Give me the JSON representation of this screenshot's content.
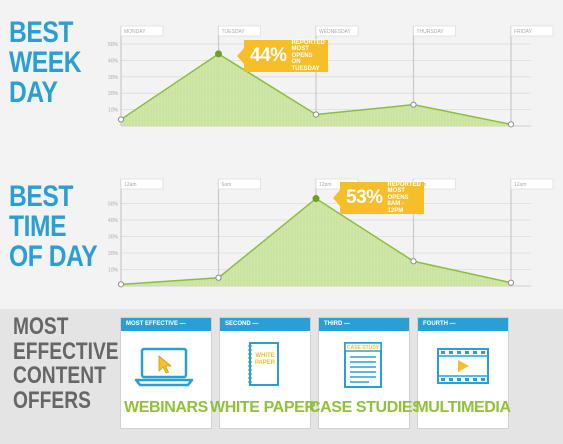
{
  "left_titles": {
    "week": [
      "BEST",
      "WEEK",
      "DAY"
    ],
    "time": [
      "BEST",
      "TIME",
      "OF DAY"
    ]
  },
  "colors": {
    "blue": "#2a9fd6",
    "green_fill": "#cfe6a4",
    "green_line": "#8cbe3c",
    "callout": "#f6bf2a",
    "gray_text": "#666666"
  },
  "chart_data": [
    {
      "type": "area",
      "categories": [
        "MONDAY",
        "TUESDAY",
        "WEDNESDAY",
        "THURSDAY",
        "FRIDAY"
      ],
      "values": [
        4,
        44,
        7,
        13,
        1
      ],
      "ylim": [
        0,
        50
      ],
      "yticks": [
        "10%",
        "20%",
        "30%",
        "40%",
        "50%"
      ],
      "grid": true,
      "callout": {
        "pct": "44%",
        "text": [
          "REPORTED",
          "MOST OPENS",
          "ON TUESDAY"
        ],
        "index": 1
      }
    },
    {
      "type": "area",
      "categories": [
        "12am",
        "6am",
        "12pm",
        "6pm",
        "12am"
      ],
      "values": [
        1,
        5,
        53,
        15,
        2
      ],
      "ylim": [
        0,
        60
      ],
      "yticks": [
        "10%",
        "20%",
        "30%",
        "40%",
        "50%"
      ],
      "grid": true,
      "callout": {
        "pct": "53%",
        "text": [
          "REPORTED",
          "MOST OPENS",
          "8AM - 12PM"
        ],
        "index": 2
      }
    }
  ],
  "offers": {
    "title": [
      "MOST",
      "EFFECTIVE",
      "CONTENT",
      "OFFERS"
    ],
    "cards": [
      {
        "rank": "MOST EFFECTIVE —",
        "label": "WEBINARS",
        "icon": "laptop-icon"
      },
      {
        "rank": "SECOND —",
        "label": "WHITE PAPERS",
        "icon": "document-icon",
        "icon_text": [
          "WHITE",
          "PAPER"
        ]
      },
      {
        "rank": "THIRD —",
        "label": "CASE STUDIES",
        "icon": "clipboard-icon",
        "icon_text": [
          "CASE STUDY"
        ]
      },
      {
        "rank": "FOURTH —",
        "label": "MULTIMEDIA",
        "icon": "film-icon"
      }
    ]
  }
}
